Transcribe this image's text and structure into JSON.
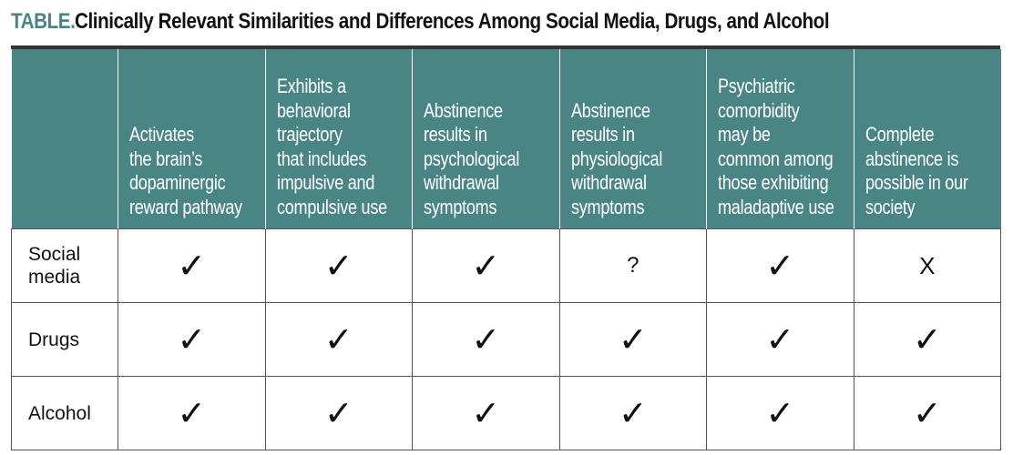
{
  "title": {
    "label": "TABLE.",
    "text": "Clinically Relevant Similarities and Differences Among Social Media, Drugs, and Alcohol"
  },
  "colors": {
    "header_bg": "#4a8585",
    "title_label": "#4a8585",
    "text": "#111111"
  },
  "columns": [
    "",
    "Activates\nthe brain’s\ndopaminergic\nreward pathway",
    "Exhibits a\nbehavioral\ntrajectory\nthat includes\nimpulsive and\ncompulsive use",
    "Abstinence\nresults in\npsychological\nwithdrawal\nsymptoms",
    "Abstinence\nresults in\nphysiological\nwithdrawal\nsymptoms",
    "Psychiatric\ncomorbidity\nmay be\ncommon among\nthose exhibiting\nmaladaptive use",
    "Complete\nabstinence is\npossible in our\nsociety"
  ],
  "rows": [
    {
      "label": "Social\nmedia",
      "cells": [
        "✓",
        "✓",
        "✓",
        "?",
        "✓",
        "X"
      ]
    },
    {
      "label": "Drugs",
      "cells": [
        "✓",
        "✓",
        "✓",
        "✓",
        "✓",
        "✓"
      ]
    },
    {
      "label": "Alcohol",
      "cells": [
        "✓",
        "✓",
        "✓",
        "✓",
        "✓",
        "✓"
      ]
    }
  ]
}
